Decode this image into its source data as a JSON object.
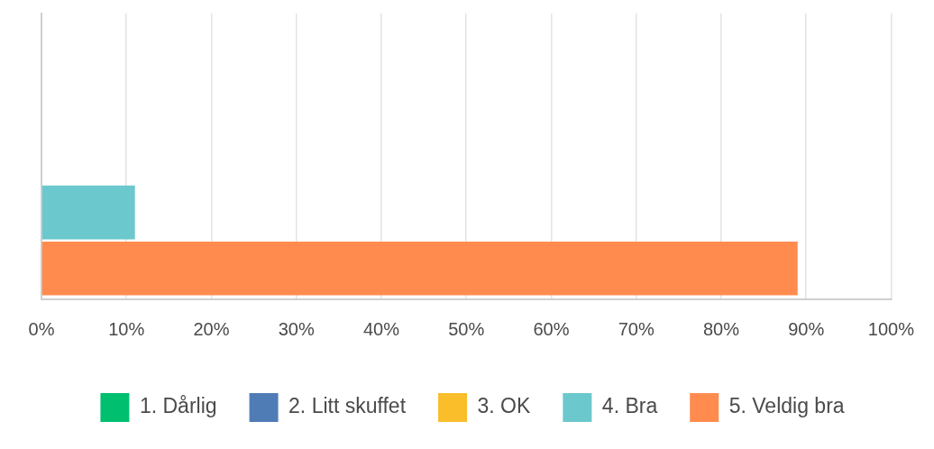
{
  "chart_data": {
    "type": "bar",
    "orientation": "horizontal",
    "categories": [
      null
    ],
    "series": [
      {
        "name": "1. Dårlig",
        "color": "#00bf6f",
        "values": [
          0
        ]
      },
      {
        "name": "2. Litt skuffet",
        "color": "#507cb6",
        "values": [
          0
        ]
      },
      {
        "name": "3. OK",
        "color": "#f9be2a",
        "values": [
          0
        ]
      },
      {
        "name": "4. Bra",
        "color": "#6bc8cd",
        "values": [
          11
        ]
      },
      {
        "name": "5. Veldig bra",
        "color": "#ff8b4f",
        "values": [
          89
        ]
      }
    ],
    "xlim": [
      0,
      100
    ],
    "xticks": [
      {
        "value": 0,
        "label": "0%"
      },
      {
        "value": 10,
        "label": "10%"
      },
      {
        "value": 20,
        "label": "20%"
      },
      {
        "value": 30,
        "label": "30%"
      },
      {
        "value": 40,
        "label": "40%"
      },
      {
        "value": 50,
        "label": "50%"
      },
      {
        "value": 60,
        "label": "60%"
      },
      {
        "value": 70,
        "label": "70%"
      },
      {
        "value": 80,
        "label": "80%"
      },
      {
        "value": 90,
        "label": "90%"
      },
      {
        "value": 100,
        "label": "100%"
      }
    ],
    "grid": "x",
    "legend": "bottom"
  }
}
